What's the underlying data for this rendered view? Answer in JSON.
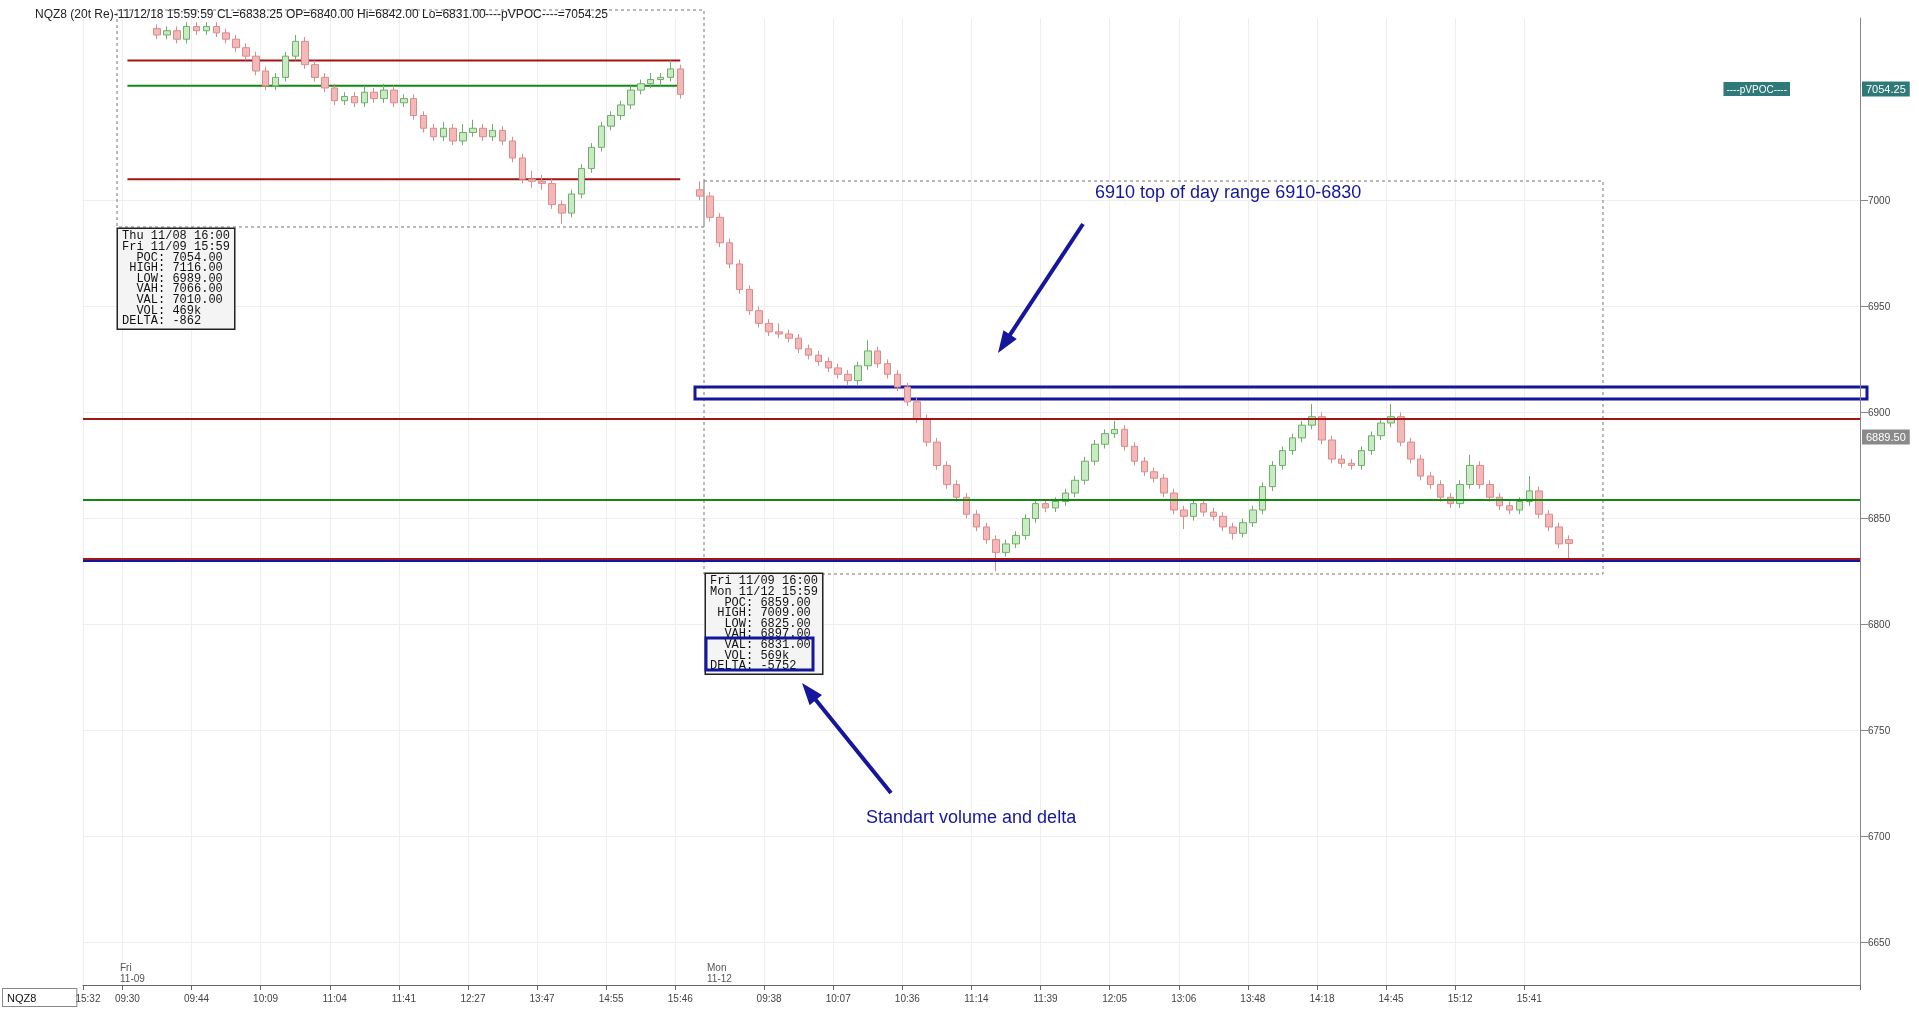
{
  "chart_data": {
    "type": "candlestick",
    "title": "NQZ8 (20t Re)-11/12/18 15:59:59 CL=6838.25 OP=6840.00 Hi=6842.00 Lo=6831.00",
    "subtitle": "----pVPOC----=7054.25",
    "categories": [
      "15:32",
      null,
      null,
      null,
      "09:30",
      null,
      null,
      null,
      null,
      null,
      null,
      "09:44",
      null,
      null,
      null,
      null,
      null,
      null,
      "10:09",
      null,
      null,
      null,
      null,
      null,
      null,
      "11:04",
      null,
      null,
      null,
      null,
      null,
      null,
      "11:41",
      null,
      null,
      null,
      null,
      null,
      null,
      "12:27",
      null,
      null,
      null,
      null,
      null,
      null,
      "13:47",
      null,
      null,
      null,
      null,
      null,
      null,
      "14:55",
      null,
      null,
      null,
      null,
      null,
      null,
      "15:46",
      null,
      null,
      null,
      null,
      null,
      null,
      null,
      null,
      "09:38",
      null,
      null,
      null,
      null,
      null,
      null,
      "10:07",
      null,
      null,
      null,
      null,
      null,
      null,
      "10:36",
      null,
      null,
      null,
      null,
      null,
      null,
      "11:14",
      null,
      null,
      null,
      null,
      null,
      null,
      "11:39",
      null,
      null,
      null,
      null,
      null,
      null,
      "12:05",
      null,
      null,
      null,
      null,
      null,
      null,
      "13:06",
      null,
      null,
      null,
      null,
      null,
      null,
      "13:48",
      null,
      null,
      null,
      null,
      null,
      null,
      "14:18",
      null,
      null,
      null,
      null,
      null,
      null,
      "14:45",
      null,
      null,
      null,
      null,
      null,
      null,
      "15:12",
      null,
      null,
      null,
      null,
      null,
      null,
      "15:41",
      null,
      null,
      null,
      null,
      null,
      null,
      null,
      null,
      null,
      null,
      null,
      null,
      null,
      null,
      null,
      null,
      null,
      null,
      null,
      null,
      null,
      null,
      null,
      null,
      null,
      null,
      null,
      null,
      null,
      null,
      null,
      null,
      null
    ],
    "ohlc": [
      null,
      null,
      null,
      null,
      null,
      null,
      null,
      [
        7081,
        7083,
        7076,
        7078
      ],
      [
        7078,
        7082,
        7076,
        7080
      ],
      [
        7080,
        7082,
        7074,
        7076
      ],
      [
        7076,
        7084,
        7074,
        7082
      ],
      [
        7082,
        7084,
        7078,
        7080
      ],
      [
        7080,
        7084,
        7078,
        7082
      ],
      [
        7082,
        7084,
        7077,
        7079
      ],
      [
        7079,
        7081,
        7074,
        7076
      ],
      [
        7076,
        7078,
        7070,
        7072
      ],
      [
        7072,
        7074,
        7066,
        7068
      ],
      [
        7068,
        7070,
        7059,
        7061
      ],
      [
        7061,
        7063,
        7052,
        7054
      ],
      [
        7054,
        7060,
        7052,
        7058
      ],
      [
        7058,
        7070,
        7056,
        7068
      ],
      [
        7068,
        7078,
        7066,
        7075
      ],
      [
        7075,
        7077,
        7062,
        7064
      ],
      [
        7064,
        7066,
        7056,
        7058
      ],
      [
        7058,
        7060,
        7051,
        7053
      ],
      [
        7053,
        7055,
        7045,
        7047
      ],
      [
        7047,
        7051,
        7045,
        7049
      ],
      [
        7049,
        7051,
        7044,
        7046
      ],
      [
        7046,
        7054,
        7044,
        7051
      ],
      [
        7051,
        7053,
        7046,
        7048
      ],
      [
        7048,
        7055,
        7046,
        7052
      ],
      [
        7052,
        7054,
        7044,
        7046
      ],
      [
        7046,
        7050,
        7044,
        7048
      ],
      [
        7048,
        7050,
        7038,
        7040
      ],
      [
        7040,
        7042,
        7032,
        7034
      ],
      [
        7034,
        7036,
        7028,
        7030
      ],
      [
        7030,
        7037,
        7028,
        7034
      ],
      [
        7034,
        7036,
        7026,
        7028
      ],
      [
        7028,
        7036,
        7026,
        7032
      ],
      [
        7032,
        7038,
        7030,
        7034
      ],
      [
        7034,
        7036,
        7028,
        7030
      ],
      [
        7030,
        7036,
        7028,
        7033
      ],
      [
        7033,
        7035,
        7026,
        7028
      ],
      [
        7028,
        7030,
        7018,
        7020
      ],
      [
        7020,
        7022,
        7008,
        7010
      ],
      [
        7010,
        7014,
        7006,
        7009
      ],
      [
        7009,
        7012,
        7005,
        7008
      ],
      [
        7008,
        7010,
        6996,
        6998
      ],
      [
        6998,
        7000,
        6989,
        6994
      ],
      [
        6994,
        7005,
        6992,
        7003
      ],
      [
        7003,
        7017,
        7001,
        7015
      ],
      [
        7015,
        7027,
        7013,
        7025
      ],
      [
        7025,
        7037,
        7023,
        7035
      ],
      [
        7035,
        7042,
        7033,
        7040
      ],
      [
        7040,
        7047,
        7038,
        7045
      ],
      [
        7045,
        7054,
        7043,
        7052
      ],
      [
        7052,
        7057,
        7050,
        7055
      ],
      [
        7055,
        7060,
        7053,
        7057
      ],
      [
        7057,
        7060,
        7054,
        7058
      ],
      [
        7058,
        7066,
        7056,
        7062
      ],
      [
        7062,
        7064,
        7048,
        7050
      ],
      null,
      [
        7005,
        7009,
        7000,
        7002
      ],
      [
        7002,
        7004,
        6990,
        6992
      ],
      [
        6992,
        6994,
        6978,
        6980
      ],
      [
        6980,
        6982,
        6968,
        6970
      ],
      [
        6970,
        6972,
        6956,
        6958
      ],
      [
        6958,
        6960,
        6946,
        6948
      ],
      [
        6948,
        6950,
        6940,
        6942
      ],
      [
        6942,
        6944,
        6936,
        6938
      ],
      [
        6938,
        6942,
        6935,
        6937
      ],
      [
        6937,
        6939,
        6933,
        6935
      ],
      [
        6935,
        6937,
        6928,
        6930
      ],
      [
        6930,
        6932,
        6925,
        6927
      ],
      [
        6927,
        6929,
        6922,
        6924
      ],
      [
        6924,
        6926,
        6919,
        6921
      ],
      [
        6921,
        6923,
        6916,
        6918
      ],
      [
        6918,
        6920,
        6913,
        6915
      ],
      [
        6915,
        6924,
        6913,
        6922
      ],
      [
        6922,
        6934,
        6920,
        6929
      ],
      [
        6929,
        6931,
        6921,
        6923
      ],
      [
        6923,
        6925,
        6916,
        6918
      ],
      [
        6918,
        6920,
        6910,
        6912
      ],
      [
        6912,
        6914,
        6903,
        6905
      ],
      [
        6905,
        6907,
        6895,
        6897
      ],
      [
        6897,
        6899,
        6884,
        6886
      ],
      [
        6886,
        6888,
        6873,
        6875
      ],
      [
        6875,
        6877,
        6864,
        6866
      ],
      [
        6866,
        6868,
        6858,
        6860
      ],
      [
        6860,
        6862,
        6850,
        6852
      ],
      [
        6852,
        6854,
        6844,
        6846
      ],
      [
        6846,
        6848,
        6838,
        6840
      ],
      [
        6840,
        6842,
        6825,
        6834
      ],
      [
        6834,
        6840,
        6832,
        6838
      ],
      [
        6838,
        6844,
        6836,
        6842
      ],
      [
        6842,
        6852,
        6840,
        6850
      ],
      [
        6850,
        6859,
        6848,
        6857
      ],
      [
        6857,
        6859,
        6853,
        6855
      ],
      [
        6855,
        6860,
        6853,
        6858
      ],
      [
        6858,
        6864,
        6856,
        6862
      ],
      [
        6862,
        6870,
        6860,
        6868
      ],
      [
        6868,
        6879,
        6866,
        6877
      ],
      [
        6877,
        6887,
        6875,
        6885
      ],
      [
        6885,
        6892,
        6883,
        6890
      ],
      [
        6890,
        6896,
        6888,
        6892
      ],
      [
        6892,
        6894,
        6882,
        6884
      ],
      [
        6884,
        6886,
        6875,
        6877
      ],
      [
        6877,
        6879,
        6870,
        6872
      ],
      [
        6872,
        6874,
        6867,
        6869
      ],
      [
        6869,
        6871,
        6860,
        6862
      ],
      [
        6862,
        6864,
        6852,
        6854
      ],
      [
        6854,
        6856,
        6845,
        6851
      ],
      [
        6851,
        6859,
        6849,
        6857
      ],
      [
        6857,
        6859,
        6851,
        6853
      ],
      [
        6853,
        6855,
        6849,
        6851
      ],
      [
        6851,
        6853,
        6844,
        6846
      ],
      [
        6846,
        6848,
        6840,
        6843
      ],
      [
        6843,
        6850,
        6841,
        6848
      ],
      [
        6848,
        6856,
        6846,
        6854
      ],
      [
        6854,
        6867,
        6852,
        6865
      ],
      [
        6865,
        6877,
        6863,
        6875
      ],
      [
        6875,
        6884,
        6873,
        6882
      ],
      [
        6882,
        6890,
        6880,
        6888
      ],
      [
        6888,
        6896,
        6886,
        6894
      ],
      [
        6894,
        6904,
        6892,
        6898
      ],
      [
        6898,
        6900,
        6885,
        6887
      ],
      [
        6887,
        6889,
        6876,
        6878
      ],
      [
        6878,
        6880,
        6874,
        6876
      ],
      [
        6876,
        6878,
        6873,
        6875
      ],
      [
        6875,
        6884,
        6873,
        6882
      ],
      [
        6882,
        6891,
        6880,
        6889
      ],
      [
        6889,
        6897,
        6887,
        6895
      ],
      [
        6895,
        6904,
        6893,
        6898
      ],
      [
        6898,
        6900,
        6884,
        6886
      ],
      [
        6886,
        6888,
        6876,
        6878
      ],
      [
        6878,
        6880,
        6868,
        6870
      ],
      [
        6870,
        6872,
        6864,
        6866
      ],
      [
        6866,
        6868,
        6858,
        6860
      ],
      [
        6860,
        6862,
        6855,
        6857
      ],
      [
        6857,
        6868,
        6855,
        6866
      ],
      [
        6866,
        6880,
        6864,
        6875
      ],
      [
        6875,
        6877,
        6864,
        6866
      ],
      [
        6866,
        6868,
        6858,
        6860
      ],
      [
        6860,
        6862,
        6854,
        6856
      ],
      [
        6856,
        6858,
        6852,
        6854
      ],
      [
        6854,
        6860,
        6852,
        6858
      ],
      [
        6858,
        6870,
        6856,
        6863
      ],
      [
        6863,
        6865,
        6850,
        6852
      ],
      [
        6852,
        6854,
        6844,
        6846
      ],
      [
        6846,
        6848,
        6836,
        6838
      ],
      [
        6840,
        6842,
        6831,
        6838.25
      ],
      null,
      null,
      null,
      null,
      null,
      null,
      null,
      null,
      null,
      null,
      null,
      null,
      null,
      null,
      null,
      null,
      null,
      null,
      null,
      null,
      null,
      null,
      null,
      null,
      null,
      null,
      null,
      null,
      null
    ],
    "series": [
      {
        "type": "line",
        "color": "#a31515",
        "x": [
          "09:30",
          "15:46"
        ],
        "values": [
          7066,
          7066
        ]
      },
      {
        "type": "line",
        "color": "#128a12",
        "x": [
          "09:30",
          "15:46"
        ],
        "values": [
          7054,
          7054
        ]
      },
      {
        "type": "line",
        "color": "#a31515",
        "x": [
          "09:30",
          "15:46"
        ],
        "values": [
          7010,
          7010
        ]
      }
    ],
    "ref_lines": [
      {
        "axis": "y",
        "value": 6897,
        "color": "#a31515"
      },
      {
        "axis": "y",
        "value": 6859,
        "color": "#128a12"
      },
      {
        "axis": "y",
        "value": 6831,
        "color": "#a31515"
      },
      {
        "axis": "y",
        "value": 6830,
        "color": "#14169c"
      }
    ],
    "annotations": [
      "6910 top of day range 6910-6830",
      "Standart volume and delta",
      "Thu 11/08 16:00\nFri 11/09 15:59\n  POC: 7054.00\n HIGH: 7116.00\n  LOW: 6989.00\n  VAH: 7066.00\n  VAL: 7010.00\n  VOL: 469k\nDELTA: -862",
      "Fri 11/09 16:00\nMon 11/12 15:59\n  POC: 6859.00\n HIGH: 7009.00\n  LOW: 6825.00\n  VAH: 6897.00\n  VAL: 6831.00\n  VOL: 569k\nDELTA: -5752",
      "Fri\n11-09",
      "Mon\n11-12",
      "NQZ8",
      "----pVPOC----",
      "7054.25",
      "6889.50"
    ],
    "ylim": [
      6630,
      7086
    ],
    "yticks": [
      6650,
      6700,
      6750,
      6800,
      6850,
      6900,
      6950,
      7000
    ],
    "grid": true
  }
}
